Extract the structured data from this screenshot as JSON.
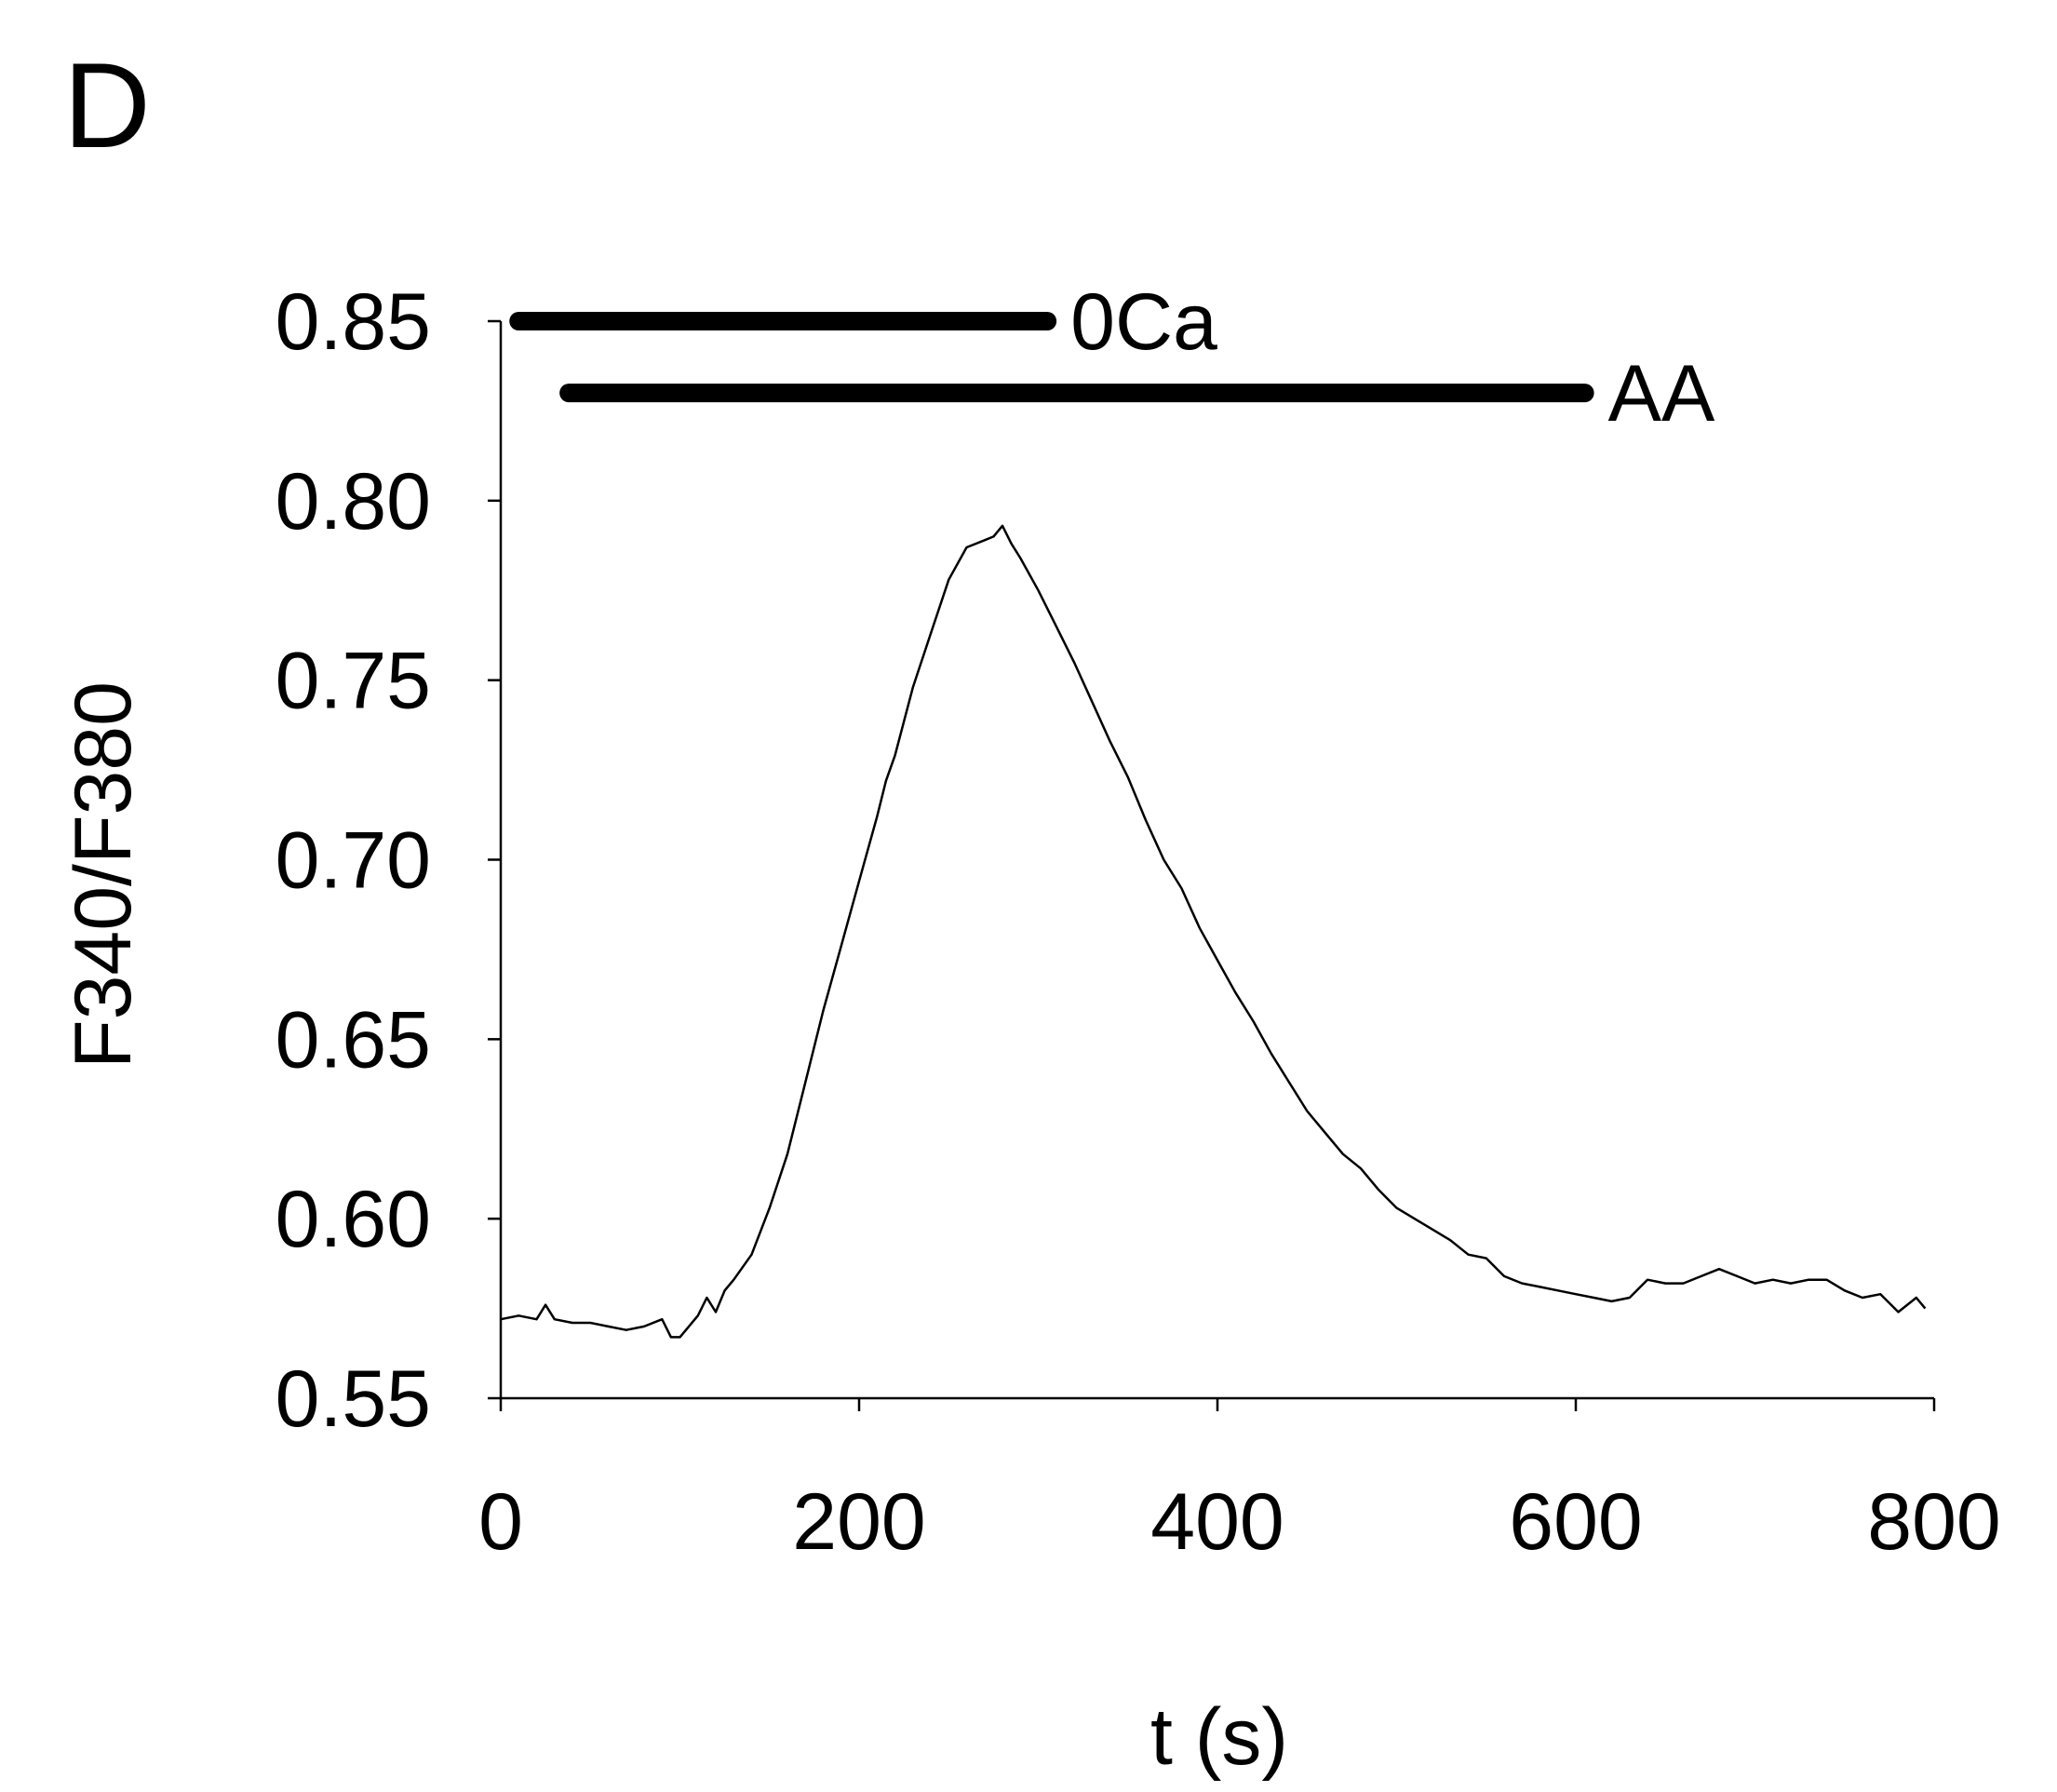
{
  "panel_label": "D",
  "chart_data": {
    "type": "line",
    "xlabel": "t (s)",
    "ylabel": "F340/F380",
    "xlim": [
      0,
      800
    ],
    "ylim": [
      0.55,
      0.85
    ],
    "x_ticks": [
      0,
      200,
      400,
      600,
      800
    ],
    "x_tick_labels": [
      "0",
      "200",
      "400",
      "600",
      "800"
    ],
    "y_ticks": [
      0.55,
      0.6,
      0.65,
      0.7,
      0.75,
      0.8,
      0.85
    ],
    "y_tick_labels": [
      "0.55",
      "0.60",
      "0.65",
      "0.70",
      "0.75",
      "0.80",
      "0.85"
    ],
    "grid": false,
    "series": [
      {
        "x": [
          0,
          10,
          20,
          25,
          30,
          40,
          50,
          60,
          70,
          80,
          90,
          95,
          100,
          105,
          110,
          115,
          120,
          125,
          130,
          140,
          150,
          160,
          170,
          180,
          190,
          200,
          210,
          215,
          220,
          230,
          240,
          250,
          260,
          270,
          275,
          280,
          285,
          290,
          300,
          310,
          320,
          330,
          340,
          350,
          360,
          370,
          380,
          390,
          400,
          410,
          420,
          430,
          440,
          450,
          460,
          470,
          480,
          490,
          500,
          510,
          520,
          530,
          540,
          550,
          560,
          570,
          580,
          590,
          600,
          610,
          620,
          630,
          640,
          650,
          660,
          670,
          680,
          690,
          700,
          710,
          720,
          730,
          740,
          750,
          760,
          770,
          780,
          790,
          795
        ],
        "y": [
          0.572,
          0.573,
          0.572,
          0.576,
          0.572,
          0.571,
          0.571,
          0.57,
          0.569,
          0.57,
          0.572,
          0.567,
          0.567,
          0.57,
          0.573,
          0.578,
          0.574,
          0.58,
          0.583,
          0.59,
          0.603,
          0.618,
          0.638,
          0.658,
          0.676,
          0.694,
          0.712,
          0.722,
          0.729,
          0.748,
          0.763,
          0.778,
          0.787,
          0.789,
          0.79,
          0.793,
          0.788,
          0.784,
          0.775,
          0.765,
          0.755,
          0.744,
          0.733,
          0.723,
          0.711,
          0.7,
          0.692,
          0.681,
          0.672,
          0.663,
          0.655,
          0.646,
          0.638,
          0.63,
          0.624,
          0.618,
          0.614,
          0.608,
          0.603,
          0.6,
          0.597,
          0.594,
          0.59,
          0.589,
          0.584,
          0.582,
          0.581,
          0.58,
          0.579,
          0.578,
          0.577,
          0.578,
          0.583,
          0.582,
          0.582,
          0.584,
          0.586,
          0.584,
          0.582,
          0.583,
          0.582,
          0.583,
          0.583,
          0.58,
          0.578,
          0.579,
          0.574,
          0.578,
          0.575
        ]
      }
    ],
    "annotations": [
      {
        "label": "0Ca",
        "x_start": 10,
        "x_end": 305,
        "y": 0.85
      },
      {
        "label": "AA",
        "x_start": 38,
        "x_end": 605,
        "y": 0.83
      }
    ]
  }
}
